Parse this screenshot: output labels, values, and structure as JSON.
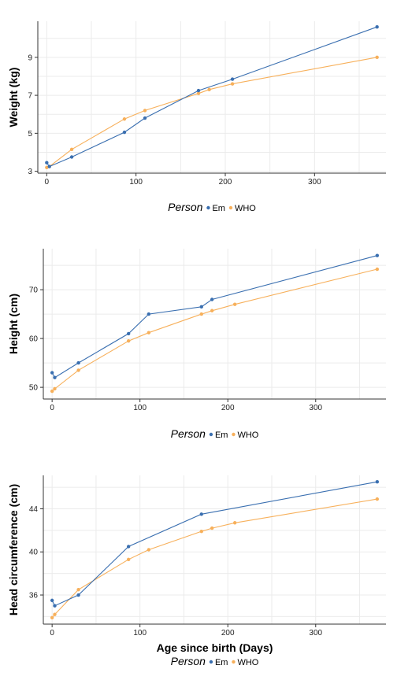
{
  "colors": {
    "Em": "#3a6fb0",
    "WHO": "#f7b05b"
  },
  "chart_data": [
    {
      "type": "line",
      "ylabel": "Weight (kg)",
      "xlabel": "",
      "xlim": [
        -10,
        380
      ],
      "ylim": [
        2.9,
        10.9
      ],
      "xticks": [
        0,
        100,
        200,
        300
      ],
      "yticks": [
        3,
        5,
        7,
        9
      ],
      "legend": {
        "title": "Person",
        "entries": [
          "Em",
          "WHO"
        ],
        "placement": "bottom"
      },
      "series": [
        {
          "name": "Em",
          "x": [
            0,
            3,
            28,
            87,
            110,
            170,
            208,
            370
          ],
          "y": [
            3.45,
            3.25,
            3.75,
            5.05,
            5.8,
            7.25,
            7.85,
            10.6
          ]
        },
        {
          "name": "WHO",
          "x": [
            0,
            3,
            28,
            87,
            110,
            170,
            182,
            208,
            370
          ],
          "y": [
            3.2,
            3.25,
            4.15,
            5.75,
            6.2,
            7.1,
            7.3,
            7.6,
            9.0
          ]
        }
      ]
    },
    {
      "type": "line",
      "ylabel": "Height (cm)",
      "xlabel": "",
      "xlim": [
        -10,
        380
      ],
      "ylim": [
        47.6,
        78.4
      ],
      "xticks": [
        0,
        100,
        200,
        300
      ],
      "yticks": [
        50,
        60,
        70
      ],
      "legend": {
        "title": "Person",
        "entries": [
          "Em",
          "WHO"
        ],
        "placement": "bottom"
      },
      "series": [
        {
          "name": "Em",
          "x": [
            0,
            3,
            30,
            87,
            110,
            170,
            182,
            370
          ],
          "y": [
            53.0,
            52.0,
            55.0,
            61.0,
            65.0,
            66.5,
            68.0,
            77.0
          ]
        },
        {
          "name": "WHO",
          "x": [
            0,
            3,
            30,
            87,
            110,
            170,
            182,
            208,
            370
          ],
          "y": [
            49.2,
            49.7,
            53.5,
            59.5,
            61.2,
            65.0,
            65.7,
            67.0,
            74.2
          ]
        }
      ]
    },
    {
      "type": "line",
      "ylabel": "Head circumference (cm)",
      "xlabel": "Age since birth (Days)",
      "xlim": [
        -10,
        380
      ],
      "ylim": [
        33.3,
        47.1
      ],
      "xticks": [
        0,
        100,
        200,
        300
      ],
      "yticks": [
        36,
        40,
        44
      ],
      "legend": {
        "title": "Person",
        "entries": [
          "Em",
          "WHO"
        ],
        "placement": "bottom"
      },
      "series": [
        {
          "name": "Em",
          "x": [
            0,
            3,
            30,
            87,
            170,
            370
          ],
          "y": [
            35.5,
            35.0,
            36.0,
            40.5,
            43.5,
            46.5
          ]
        },
        {
          "name": "WHO",
          "x": [
            0,
            3,
            30,
            87,
            110,
            170,
            182,
            208,
            370
          ],
          "y": [
            33.9,
            34.2,
            36.5,
            39.3,
            40.2,
            41.9,
            42.2,
            42.7,
            44.9
          ]
        }
      ]
    }
  ]
}
